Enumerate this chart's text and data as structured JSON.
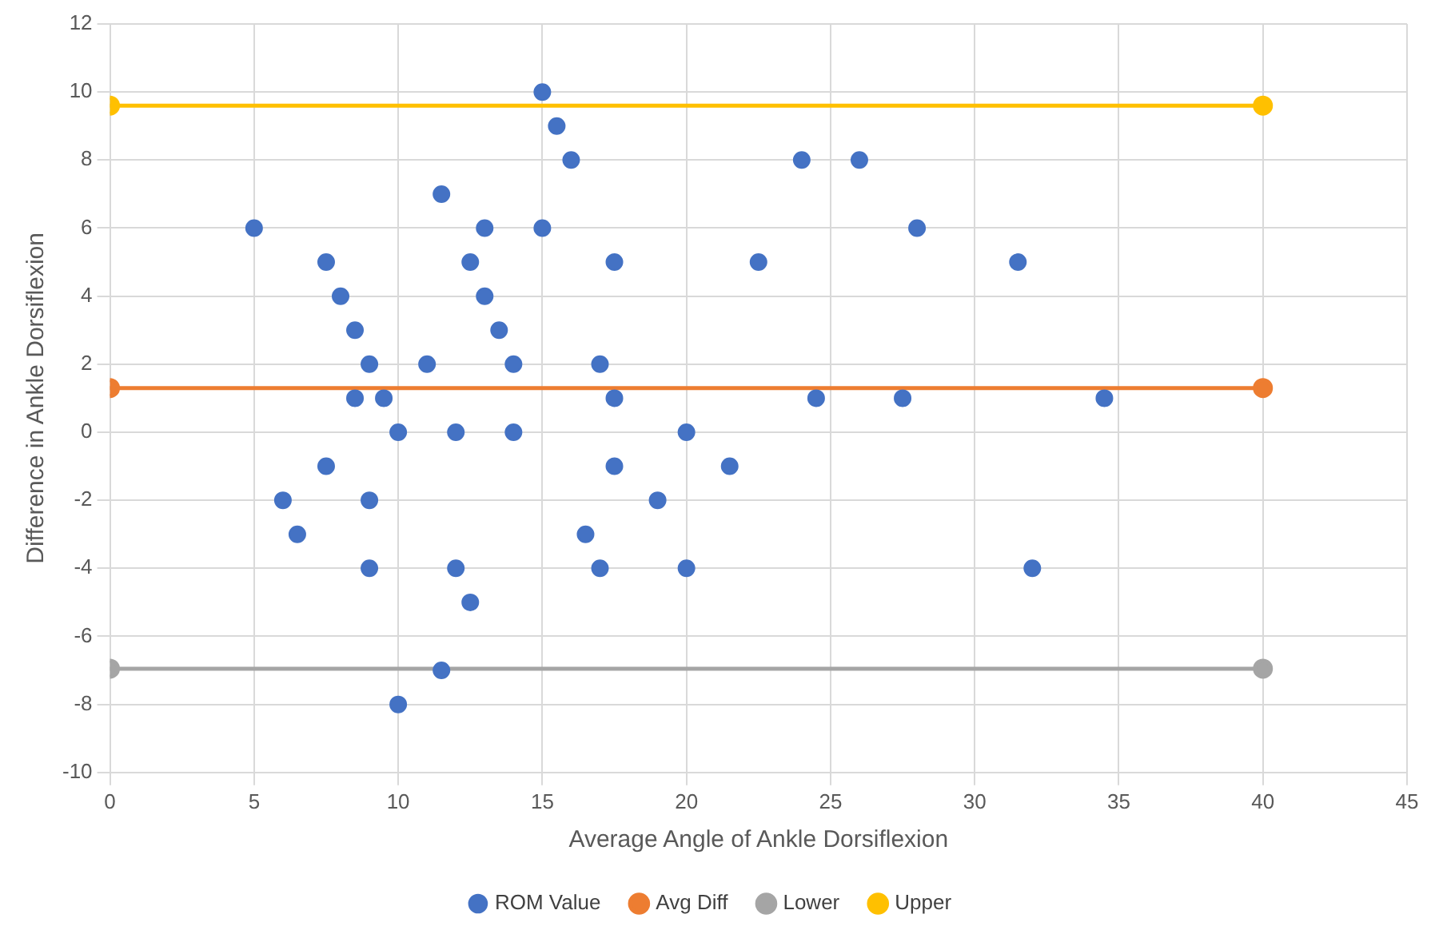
{
  "chart_data": {
    "type": "scatter",
    "xlabel": "Average Angle of Ankle Dorsiflexion",
    "ylabel": "Difference in Ankle Dorsiflexion",
    "xlim": [
      0,
      45
    ],
    "xticks": [
      0,
      5,
      10,
      15,
      20,
      25,
      30,
      35,
      40,
      45
    ],
    "ylim": [
      -10,
      12
    ],
    "yticks": [
      -10,
      -8,
      -6,
      -4,
      -2,
      0,
      2,
      4,
      6,
      8,
      10,
      12
    ],
    "grid": true,
    "legend": "bottom",
    "marker": "circle",
    "series": [
      {
        "name": "ROM Value",
        "type": "scatter",
        "color": "#4472c4",
        "x": [
          5,
          6,
          6.5,
          7.5,
          7.5,
          8,
          8.5,
          8.5,
          9,
          9,
          9,
          9.5,
          10,
          10,
          11,
          11.5,
          11.5,
          12,
          12,
          12.5,
          12.5,
          13,
          13,
          13.5,
          14,
          14,
          15,
          15,
          15.5,
          16,
          16.5,
          17,
          17,
          17.5,
          17.5,
          17.5,
          19,
          20,
          20,
          21.5,
          22.5,
          24,
          24.5,
          26,
          27.5,
          28,
          31.5,
          32,
          34.5
        ],
        "values": [
          6,
          -2,
          -3,
          5,
          -1,
          4,
          3,
          1,
          2,
          -2,
          -4,
          1,
          0,
          -8,
          2,
          7,
          -7,
          0,
          -4,
          5,
          -5,
          6,
          4,
          3,
          2,
          0,
          10,
          6,
          9,
          8,
          -3,
          2,
          -4,
          5,
          1,
          -1,
          -2,
          0,
          -4,
          -1,
          5,
          8,
          1,
          8,
          1,
          6,
          5,
          -4,
          1
        ]
      },
      {
        "name": "Avg Diff",
        "type": "line",
        "color": "#ed7d31",
        "x": [
          0,
          40
        ],
        "values": [
          1.3,
          1.3
        ]
      },
      {
        "name": "Lower",
        "type": "line",
        "color": "#a5a5a5",
        "x": [
          0,
          40
        ],
        "values": [
          -6.95,
          -6.95
        ]
      },
      {
        "name": "Upper",
        "type": "line",
        "color": "#ffc000",
        "x": [
          0,
          40
        ],
        "values": [
          9.6,
          9.6
        ]
      }
    ]
  }
}
